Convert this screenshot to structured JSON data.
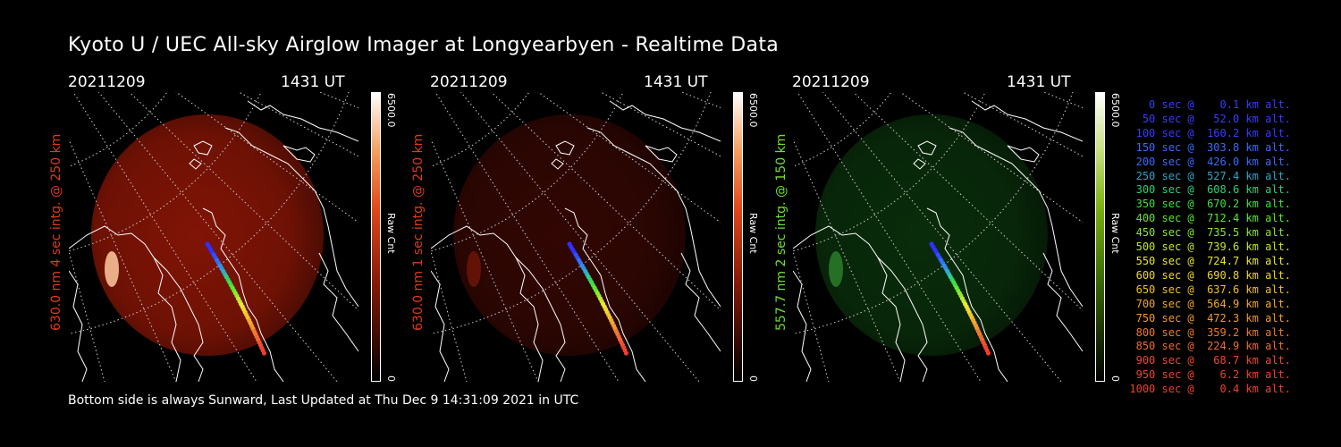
{
  "title": "Kyoto U / UEC All-sky Airglow Imager at Longyearbyen - Realtime Data",
  "footer": "Bottom side is always Sunward, Last Updated at Thu Dec  9 14:31:09 2021 in UTC",
  "panels": [
    {
      "date": "20211209",
      "time": "1431 UT",
      "ylabel": "630.0 nm 4 sec intg. @ 250 km",
      "cbar_max": "6500.0",
      "cbar_unit": "Raw Cnt",
      "cbar_min": "0",
      "label_color": "#e03a1a",
      "glow": "#a51a07",
      "glow_strength": 0.78
    },
    {
      "date": "20211209",
      "time": "1431 UT",
      "ylabel": "630.0 nm 1 sec intg. @ 250 km",
      "cbar_max": "6500.0",
      "cbar_unit": "Raw Cnt",
      "cbar_min": "0",
      "label_color": "#e03a1a",
      "glow": "#5a0c05",
      "glow_strength": 0.55
    },
    {
      "date": "20211209",
      "time": "1431 UT",
      "ylabel": "557.7 nm 2 sec intg. @ 150 km",
      "cbar_max": "6500.0",
      "cbar_unit": "Raw Cnt",
      "cbar_min": "0",
      "label_color": "#6fe030",
      "glow": "#0f4a12",
      "glow_strength": 0.6
    }
  ],
  "legend": [
    {
      "text": "0 sec @    0.1 km alt.",
      "color": "#3a3aff"
    },
    {
      "text": "50 sec @   52.0 km alt.",
      "color": "#3a3aff"
    },
    {
      "text": "100 sec @  160.2 km alt.",
      "color": "#3a3aff"
    },
    {
      "text": "150 sec @  303.8 km alt.",
      "color": "#3a6aff"
    },
    {
      "text": "200 sec @  426.0 km alt.",
      "color": "#3a6aff"
    },
    {
      "text": "250 sec @  527.4 km alt.",
      "color": "#2aa6c8"
    },
    {
      "text": "300 sec @  608.6 km alt.",
      "color": "#2ad07a"
    },
    {
      "text": "350 sec @  670.2 km alt.",
      "color": "#3ae040"
    },
    {
      "text": "400 sec @  712.4 km alt.",
      "color": "#5ae82a"
    },
    {
      "text": "450 sec @  735.5 km alt.",
      "color": "#8ae82a"
    },
    {
      "text": "500 sec @  739.6 km alt.",
      "color": "#c0e82a"
    },
    {
      "text": "550 sec @  724.7 km alt.",
      "color": "#e8e82a"
    },
    {
      "text": "600 sec @  690.8 km alt.",
      "color": "#f0d82a"
    },
    {
      "text": "650 sec @  637.6 km alt.",
      "color": "#f0c02a"
    },
    {
      "text": "700 sec @  564.9 km alt.",
      "color": "#f0a82a"
    },
    {
      "text": "750 sec @  472.3 km alt.",
      "color": "#f09a2a"
    },
    {
      "text": "800 sec @  359.2 km alt.",
      "color": "#f07a2a"
    },
    {
      "text": "850 sec @  224.9 km alt.",
      "color": "#f06a2a"
    },
    {
      "text": "900 sec @   68.7 km alt.",
      "color": "#f04a2a"
    },
    {
      "text": "950 sec @    6.2 km alt.",
      "color": "#f0402a"
    },
    {
      "text": "1000 sec @    0.4 km alt.",
      "color": "#f0402a"
    }
  ]
}
